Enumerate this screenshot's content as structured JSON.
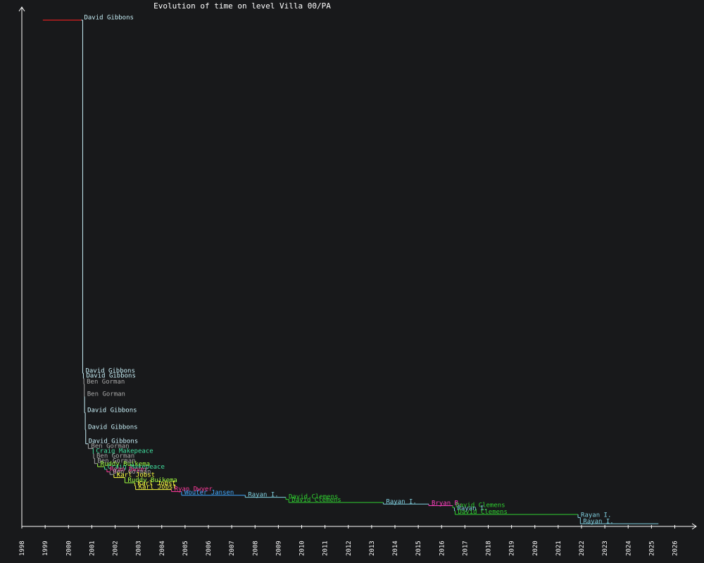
{
  "chart_data": {
    "type": "line",
    "title": "Evolution of time on level Villa 00/PA",
    "xlabel": "",
    "ylabel": "",
    "xlim": [
      1998.0,
      2026.8
    ],
    "ylim": [
      0,
      1000
    ],
    "grid": false,
    "legend": "none",
    "x_ticks": [
      "1998",
      "1999",
      "2000",
      "2001",
      "2002",
      "2003",
      "2004",
      "2005",
      "2006",
      "2007",
      "2008",
      "2009",
      "2010",
      "2011",
      "2012",
      "2013",
      "2014",
      "2015",
      "2016",
      "2017",
      "2018",
      "2019",
      "2020",
      "2021",
      "2022",
      "2023",
      "2024",
      "2025",
      "2026"
    ],
    "player_colors": {
      "David Gibbons": "#c8f0f8",
      "Ben Gorman": "#a8a8a8",
      "Craig Makepeace": "#40e0a0",
      "Ruddy Buikema": "#a0ff40",
      "Karl Jobst": "#ffff40",
      "Ryan Dwyer": "#ff3a9a",
      "Wouter Jansen": "#40a8ff",
      "Rayan I.": "#80d0e0",
      "David Clemens": "#30d030",
      "Bryan B.": "#ff40c0",
      "first": "#ff2020"
    },
    "series": [
      {
        "holder": "",
        "start": 1998.9,
        "value": 975,
        "color": "#ff2020"
      },
      {
        "holder": "David Gibbons",
        "start": 2000.55,
        "value": 975,
        "color": "#c8f0f8"
      },
      {
        "holder": "David Gibbons",
        "start": 2000.61,
        "value": 295,
        "color": "#c8f0f8"
      },
      {
        "holder": "David Gibbons",
        "start": 2000.64,
        "value": 285,
        "color": "#c8f0f8"
      },
      {
        "holder": "Ben Gorman",
        "start": 2000.66,
        "value": 274,
        "color": "#a8a8a8"
      },
      {
        "holder": "Ben Gorman",
        "start": 2000.68,
        "value": 250,
        "color": "#a8a8a8"
      },
      {
        "holder": "David Gibbons",
        "start": 2000.69,
        "value": 219,
        "color": "#c8f0f8"
      },
      {
        "holder": "David Gibbons",
        "start": 2000.72,
        "value": 186,
        "color": "#c8f0f8"
      },
      {
        "holder": "David Gibbons",
        "start": 2000.74,
        "value": 159,
        "color": "#c8f0f8"
      },
      {
        "holder": "Ben Gorman",
        "start": 2000.85,
        "value": 150,
        "color": "#a8a8a8"
      },
      {
        "holder": "Craig Makepeace",
        "start": 2001.06,
        "value": 140,
        "color": "#40e0a0"
      },
      {
        "holder": "Ben Gorman",
        "start": 2001.08,
        "value": 131,
        "color": "#a8a8a8"
      },
      {
        "holder": "Ben Gorman",
        "start": 2001.12,
        "value": 121,
        "color": "#a8a8a8"
      },
      {
        "holder": "Ruddy Buikema",
        "start": 2001.25,
        "value": 115,
        "color": "#a0ff40"
      },
      {
        "holder": "Craig Makepeace",
        "start": 2001.55,
        "value": 110,
        "color": "#40e0a0"
      },
      {
        "holder": "Ryan Dwyer",
        "start": 2001.65,
        "value": 105,
        "color": "#ff3a9a"
      },
      {
        "holder": "Ben Gorman",
        "start": 2001.78,
        "value": 100,
        "color": "#a8a8a8"
      },
      {
        "holder": "Karl Jobst",
        "start": 2001.95,
        "value": 94,
        "color": "#ffff40"
      },
      {
        "holder": "Ruddy Buikema",
        "start": 2002.42,
        "value": 84,
        "color": "#a0ff40"
      },
      {
        "holder": "Karl Jobst",
        "start": 2002.85,
        "value": 78,
        "color": "#ffff40"
      },
      {
        "holder": "Karl Jobst",
        "start": 2002.88,
        "value": 71,
        "color": "#ffff40"
      },
      {
        "holder": "Ryan Dwyer",
        "start": 2004.42,
        "value": 67,
        "color": "#ff3a9a"
      },
      {
        "holder": "Wouter Jansen",
        "start": 2004.85,
        "value": 60,
        "color": "#40a8ff"
      },
      {
        "holder": "Rayan I.",
        "start": 2007.58,
        "value": 56,
        "color": "#80d0e0"
      },
      {
        "holder": "David Clemens",
        "start": 2009.32,
        "value": 52,
        "color": "#30d030"
      },
      {
        "holder": "David Clemens",
        "start": 2009.45,
        "value": 46,
        "color": "#30d030"
      },
      {
        "holder": "Rayan I.",
        "start": 2013.5,
        "value": 43,
        "color": "#80d0e0"
      },
      {
        "holder": "Bryan B.",
        "start": 2015.45,
        "value": 40,
        "color": "#ff40c0"
      },
      {
        "holder": "David Clemens",
        "start": 2016.48,
        "value": 36,
        "color": "#30d030"
      },
      {
        "holder": "Rayan I.",
        "start": 2016.55,
        "value": 30,
        "color": "#80d0e0"
      },
      {
        "holder": "David Clemens",
        "start": 2016.58,
        "value": 23,
        "color": "#30d030"
      },
      {
        "holder": "Rayan I.",
        "start": 2021.85,
        "value": 17,
        "color": "#80d0e0"
      },
      {
        "holder": "Rayan I.",
        "start": 2021.95,
        "value": 5,
        "color": "#80d0e0"
      }
    ],
    "end_x": 2025.3
  }
}
